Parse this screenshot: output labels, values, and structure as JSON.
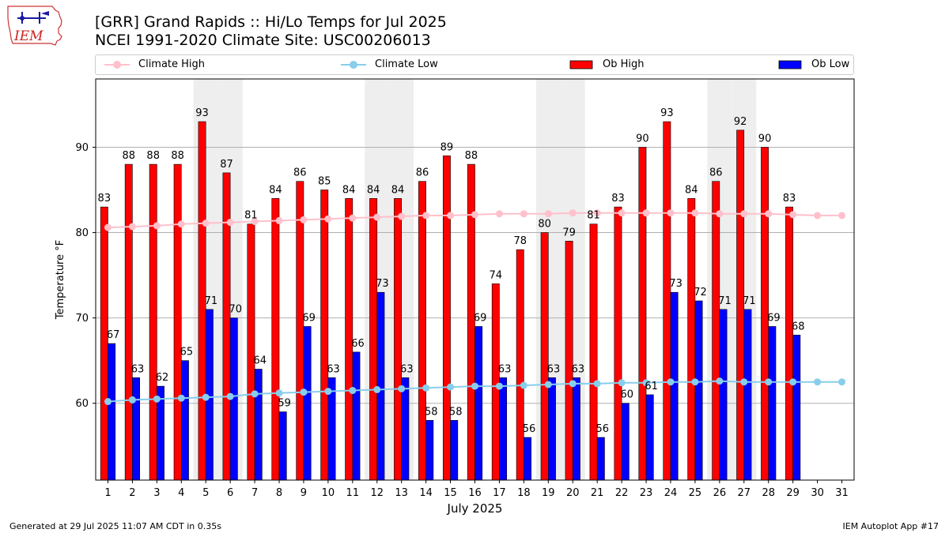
{
  "title_line1": "[GRR] Grand Rapids :: Hi/Lo Temps for Jul 2025",
  "title_line2": "NCEI 1991-2020 Climate Site: USC00206013",
  "logo_text": "IEM",
  "footer_left": "Generated at 29 Jul 2025 11:07 AM CDT in 0.35s",
  "footer_right": "IEM Autoplot App #17",
  "colors": {
    "ob_high": "#ff0000",
    "ob_low": "#0000ff",
    "climate_high": "#ffc0cb",
    "climate_low": "#87ceeb",
    "weekend_shade": "#eeeeee",
    "grid": "#b0b0b0"
  },
  "legend": [
    {
      "label": "Climate High",
      "kind": "line",
      "color": "#ffc0cb"
    },
    {
      "label": "Climate Low",
      "kind": "line",
      "color": "#87ceeb"
    },
    {
      "label": "Ob High",
      "kind": "bar",
      "color": "#ff0000"
    },
    {
      "label": "Ob Low",
      "kind": "bar",
      "color": "#0000ff"
    }
  ],
  "chart_data": {
    "type": "bar",
    "title": "[GRR] Grand Rapids :: Hi/Lo Temps for Jul 2025",
    "subtitle": "NCEI 1991-2020 Climate Site: USC00206013",
    "xlabel": "July 2025",
    "ylabel": "Temperature °F",
    "x": [
      1,
      2,
      3,
      4,
      5,
      6,
      7,
      8,
      9,
      10,
      11,
      12,
      13,
      14,
      15,
      16,
      17,
      18,
      19,
      20,
      21,
      22,
      23,
      24,
      25,
      26,
      27,
      28,
      29,
      30,
      31
    ],
    "xlim": [
      0.5,
      31.5
    ],
    "ylim": [
      51,
      98
    ],
    "yticks": [
      60,
      70,
      80,
      90
    ],
    "grid": true,
    "weekend_shaded_days": [
      5,
      6,
      12,
      13,
      19,
      20,
      26,
      27
    ],
    "legend_position": "top",
    "series": [
      {
        "name": "Ob High",
        "kind": "bar",
        "values": [
          83,
          88,
          88,
          88,
          93,
          87,
          81,
          84,
          86,
          85,
          84,
          84,
          84,
          86,
          89,
          88,
          74,
          78,
          80,
          79,
          81,
          83,
          90,
          93,
          84,
          86,
          92,
          90,
          83,
          null,
          null
        ]
      },
      {
        "name": "Ob Low",
        "kind": "bar",
        "values": [
          67,
          63,
          62,
          65,
          71,
          70,
          64,
          59,
          69,
          63,
          66,
          73,
          63,
          58,
          58,
          69,
          63,
          56,
          63,
          63,
          56,
          60,
          61,
          73,
          72,
          71,
          71,
          69,
          68,
          null,
          null
        ]
      },
      {
        "name": "Climate High",
        "kind": "line",
        "values": [
          80.6,
          80.7,
          80.8,
          81.0,
          81.1,
          81.2,
          81.3,
          81.4,
          81.5,
          81.6,
          81.7,
          81.8,
          81.9,
          82.0,
          82.0,
          82.1,
          82.2,
          82.2,
          82.2,
          82.3,
          82.3,
          82.3,
          82.3,
          82.3,
          82.3,
          82.2,
          82.2,
          82.2,
          82.1,
          82.0,
          82.0
        ]
      },
      {
        "name": "Climate Low",
        "kind": "line",
        "values": [
          60.2,
          60.4,
          60.5,
          60.6,
          60.7,
          60.8,
          61.1,
          61.2,
          61.3,
          61.4,
          61.5,
          61.6,
          61.7,
          61.8,
          61.9,
          62.0,
          62.0,
          62.1,
          62.2,
          62.3,
          62.3,
          62.4,
          62.4,
          62.5,
          62.5,
          62.6,
          62.5,
          62.5,
          62.5,
          62.5,
          62.5
        ]
      }
    ]
  }
}
